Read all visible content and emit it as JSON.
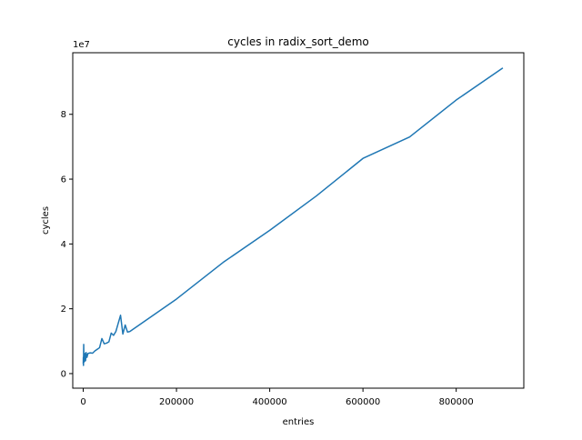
{
  "chart_data": {
    "type": "line",
    "title": "cycles in radix_sort_demo",
    "xlabel": "entries",
    "ylabel": "cycles",
    "y_offset_label": "1e7",
    "xlim": [
      -22500,
      945000
    ],
    "ylim": [
      -4500000,
      99000000
    ],
    "x_ticks": [
      {
        "value": 0,
        "label": "0"
      },
      {
        "value": 200000,
        "label": "200000"
      },
      {
        "value": 400000,
        "label": "400000"
      },
      {
        "value": 600000,
        "label": "600000"
      },
      {
        "value": 800000,
        "label": "800000"
      }
    ],
    "y_ticks": [
      {
        "value": 0,
        "label": "0"
      },
      {
        "value": 20000000,
        "label": "2"
      },
      {
        "value": 40000000,
        "label": "4"
      },
      {
        "value": 60000000,
        "label": "6"
      },
      {
        "value": 80000000,
        "label": "8"
      }
    ],
    "grid": false,
    "legend": "none",
    "series": [
      {
        "color": "#1f77b4",
        "x": [
          0,
          200,
          500,
          1000,
          1500,
          2000,
          3000,
          4000,
          5000,
          6000,
          8000,
          10000,
          15000,
          20000,
          25000,
          30000,
          35000,
          40000,
          45000,
          50000,
          55000,
          60000,
          65000,
          70000,
          75000,
          80000,
          85000,
          90000,
          95000,
          100000,
          200000,
          300000,
          400000,
          500000,
          600000,
          700000,
          800000,
          900000
        ],
        "y": [
          3000000,
          5000000,
          2500000,
          9000000,
          3500000,
          4500000,
          3800000,
          6200000,
          4000000,
          6500000,
          5000000,
          6200000,
          6400000,
          6300000,
          7000000,
          7500000,
          8000000,
          10800000,
          9200000,
          9400000,
          9800000,
          12500000,
          11800000,
          13000000,
          15500000,
          18000000,
          12200000,
          15000000,
          12800000,
          13000000,
          23000000,
          34300000,
          44200000,
          54800000,
          66400000,
          73000000,
          84400000,
          94300000
        ]
      }
    ]
  }
}
